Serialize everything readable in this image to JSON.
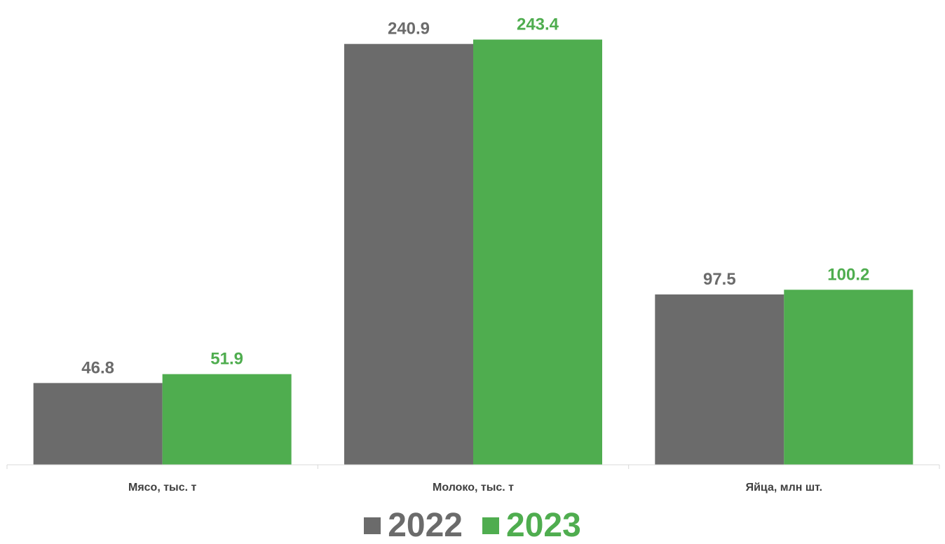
{
  "chart_data": {
    "type": "bar",
    "title": "",
    "xlabel": "",
    "ylabel": "",
    "categories": [
      "Мясо, тыс. т",
      "Молоко, тыс. т",
      "Яйца, млн шт."
    ],
    "series": [
      {
        "name": "2022",
        "values": [
          46.8,
          240.9,
          97.5
        ],
        "color": "#6b6b6b"
      },
      {
        "name": "2023",
        "values": [
          51.9,
          243.4,
          100.2
        ],
        "color": "#4fad4f"
      }
    ],
    "value_labels": [
      [
        "46.8",
        "240.9",
        "97.5"
      ],
      [
        "51.9",
        "243.4",
        "100.2"
      ]
    ],
    "ylim": [
      0,
      250
    ],
    "grid": false,
    "legend_position": "bottom-center",
    "axis_color": "#d9d9d9"
  },
  "legend": [
    {
      "label": "2022",
      "color": "#6b6b6b"
    },
    {
      "label": "2023",
      "color": "#4fad4f"
    }
  ]
}
